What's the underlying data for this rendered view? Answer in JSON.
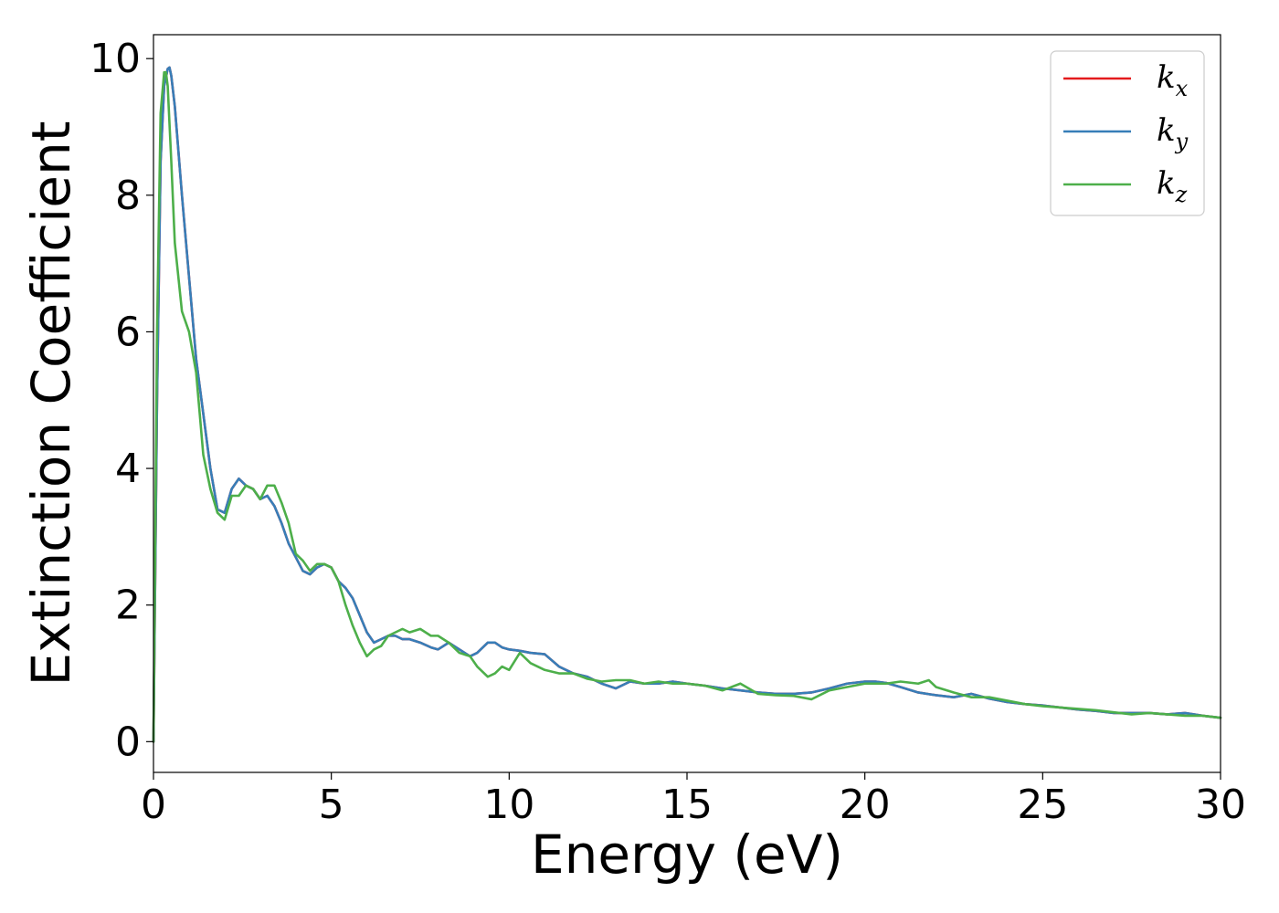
{
  "chart_data": {
    "type": "line",
    "xlabel": "Energy (eV)",
    "ylabel": "Extinction Coefficient",
    "xlim": [
      0,
      30
    ],
    "ylim": [
      -0.45,
      10.35
    ],
    "xticks": [
      0,
      5,
      10,
      15,
      20,
      25,
      30
    ],
    "yticks": [
      0,
      2,
      4,
      6,
      8,
      10
    ],
    "grid": false,
    "legend_position": "top-right",
    "series": [
      {
        "name": "k_x",
        "label_main": "k",
        "label_sub": "x",
        "color": "#e41a1c",
        "x": [
          0,
          0.1,
          0.2,
          0.3,
          0.4,
          0.45,
          0.5,
          0.6,
          0.8,
          1.0,
          1.2,
          1.4,
          1.6,
          1.8,
          2.0,
          2.2,
          2.4,
          2.6,
          2.8,
          3.0,
          3.2,
          3.4,
          3.6,
          3.8,
          4.0,
          4.2,
          4.4,
          4.6,
          4.8,
          5.0,
          5.2,
          5.4,
          5.6,
          5.8,
          6.0,
          6.2,
          6.4,
          6.6,
          6.8,
          7.0,
          7.2,
          7.5,
          7.8,
          8.0,
          8.3,
          8.6,
          8.9,
          9.1,
          9.4,
          9.6,
          9.8,
          10.0,
          10.3,
          10.6,
          11.0,
          11.4,
          11.8,
          12.2,
          12.6,
          13.0,
          13.4,
          13.8,
          14.2,
          14.6,
          15.0,
          15.5,
          16.0,
          16.5,
          17.0,
          17.5,
          18.0,
          18.5,
          19.0,
          19.5,
          20.0,
          20.3,
          20.6,
          21.0,
          21.5,
          22.0,
          22.5,
          23.0,
          23.5,
          24.0,
          24.5,
          25.0,
          25.5,
          26.0,
          26.5,
          27.0,
          27.5,
          28.0,
          28.5,
          29.0,
          29.5,
          30.0
        ],
        "y": [
          0.0,
          5.0,
          8.5,
          9.6,
          9.85,
          9.87,
          9.75,
          9.3,
          8.0,
          6.8,
          5.6,
          4.8,
          4.0,
          3.4,
          3.35,
          3.7,
          3.85,
          3.75,
          3.7,
          3.55,
          3.6,
          3.45,
          3.2,
          2.9,
          2.7,
          2.5,
          2.45,
          2.55,
          2.6,
          2.55,
          2.35,
          2.25,
          2.1,
          1.85,
          1.6,
          1.45,
          1.5,
          1.55,
          1.55,
          1.5,
          1.5,
          1.45,
          1.38,
          1.35,
          1.45,
          1.35,
          1.25,
          1.3,
          1.45,
          1.45,
          1.38,
          1.35,
          1.33,
          1.3,
          1.28,
          1.1,
          1.0,
          0.95,
          0.85,
          0.78,
          0.88,
          0.85,
          0.85,
          0.88,
          0.85,
          0.82,
          0.78,
          0.75,
          0.72,
          0.7,
          0.7,
          0.72,
          0.78,
          0.85,
          0.88,
          0.88,
          0.86,
          0.8,
          0.72,
          0.68,
          0.65,
          0.7,
          0.63,
          0.58,
          0.55,
          0.53,
          0.5,
          0.47,
          0.45,
          0.42,
          0.42,
          0.42,
          0.4,
          0.42,
          0.38,
          0.35
        ]
      },
      {
        "name": "k_y",
        "label_main": "k",
        "label_sub": "y",
        "color": "#377eb8",
        "x": [
          0,
          0.1,
          0.2,
          0.3,
          0.4,
          0.45,
          0.5,
          0.6,
          0.8,
          1.0,
          1.2,
          1.4,
          1.6,
          1.8,
          2.0,
          2.2,
          2.4,
          2.6,
          2.8,
          3.0,
          3.2,
          3.4,
          3.6,
          3.8,
          4.0,
          4.2,
          4.4,
          4.6,
          4.8,
          5.0,
          5.2,
          5.4,
          5.6,
          5.8,
          6.0,
          6.2,
          6.4,
          6.6,
          6.8,
          7.0,
          7.2,
          7.5,
          7.8,
          8.0,
          8.3,
          8.6,
          8.9,
          9.1,
          9.4,
          9.6,
          9.8,
          10.0,
          10.3,
          10.6,
          11.0,
          11.4,
          11.8,
          12.2,
          12.6,
          13.0,
          13.4,
          13.8,
          14.2,
          14.6,
          15.0,
          15.5,
          16.0,
          16.5,
          17.0,
          17.5,
          18.0,
          18.5,
          19.0,
          19.5,
          20.0,
          20.3,
          20.6,
          21.0,
          21.5,
          22.0,
          22.5,
          23.0,
          23.5,
          24.0,
          24.5,
          25.0,
          25.5,
          26.0,
          26.5,
          27.0,
          27.5,
          28.0,
          28.5,
          29.0,
          29.5,
          30.0
        ],
        "y": [
          0.0,
          5.0,
          8.5,
          9.6,
          9.85,
          9.87,
          9.75,
          9.3,
          8.0,
          6.8,
          5.6,
          4.8,
          4.0,
          3.4,
          3.35,
          3.7,
          3.85,
          3.75,
          3.7,
          3.55,
          3.6,
          3.45,
          3.2,
          2.9,
          2.7,
          2.5,
          2.45,
          2.55,
          2.6,
          2.55,
          2.35,
          2.25,
          2.1,
          1.85,
          1.6,
          1.45,
          1.5,
          1.55,
          1.55,
          1.5,
          1.5,
          1.45,
          1.38,
          1.35,
          1.45,
          1.35,
          1.25,
          1.3,
          1.45,
          1.45,
          1.38,
          1.35,
          1.33,
          1.3,
          1.28,
          1.1,
          1.0,
          0.95,
          0.85,
          0.78,
          0.88,
          0.85,
          0.85,
          0.88,
          0.85,
          0.82,
          0.78,
          0.75,
          0.72,
          0.7,
          0.7,
          0.72,
          0.78,
          0.85,
          0.88,
          0.88,
          0.86,
          0.8,
          0.72,
          0.68,
          0.65,
          0.7,
          0.63,
          0.58,
          0.55,
          0.53,
          0.5,
          0.47,
          0.45,
          0.42,
          0.42,
          0.42,
          0.4,
          0.42,
          0.38,
          0.35
        ]
      },
      {
        "name": "k_z",
        "label_main": "k",
        "label_sub": "z",
        "color": "#4daf4a",
        "x": [
          0,
          0.1,
          0.2,
          0.3,
          0.35,
          0.4,
          0.5,
          0.6,
          0.8,
          1.0,
          1.2,
          1.4,
          1.6,
          1.8,
          2.0,
          2.2,
          2.4,
          2.6,
          2.8,
          3.0,
          3.2,
          3.4,
          3.6,
          3.8,
          4.0,
          4.2,
          4.4,
          4.6,
          4.8,
          5.0,
          5.2,
          5.4,
          5.6,
          5.8,
          6.0,
          6.2,
          6.4,
          6.6,
          6.8,
          7.0,
          7.2,
          7.5,
          7.8,
          8.0,
          8.3,
          8.6,
          8.9,
          9.1,
          9.4,
          9.6,
          9.8,
          10.0,
          10.3,
          10.6,
          11.0,
          11.4,
          11.8,
          12.2,
          12.6,
          13.0,
          13.4,
          13.8,
          14.2,
          14.6,
          15.0,
          15.5,
          16.0,
          16.5,
          17.0,
          17.5,
          18.0,
          18.5,
          19.0,
          19.5,
          20.0,
          20.3,
          20.6,
          21.0,
          21.5,
          21.8,
          22.0,
          22.5,
          23.0,
          23.5,
          24.0,
          24.5,
          25.0,
          25.5,
          26.0,
          26.5,
          27.0,
          27.5,
          28.0,
          28.5,
          29.0,
          29.5,
          30.0
        ],
        "y": [
          0.0,
          6.0,
          9.2,
          9.8,
          9.8,
          9.6,
          8.5,
          7.3,
          6.3,
          6.0,
          5.4,
          4.2,
          3.7,
          3.35,
          3.25,
          3.6,
          3.6,
          3.75,
          3.7,
          3.55,
          3.75,
          3.75,
          3.5,
          3.2,
          2.75,
          2.65,
          2.5,
          2.6,
          2.6,
          2.55,
          2.35,
          2.0,
          1.7,
          1.45,
          1.25,
          1.35,
          1.4,
          1.55,
          1.6,
          1.65,
          1.6,
          1.65,
          1.55,
          1.55,
          1.45,
          1.3,
          1.25,
          1.1,
          0.95,
          1.0,
          1.1,
          1.05,
          1.3,
          1.15,
          1.05,
          1.0,
          1.0,
          0.92,
          0.88,
          0.9,
          0.9,
          0.85,
          0.88,
          0.85,
          0.85,
          0.82,
          0.75,
          0.85,
          0.7,
          0.68,
          0.67,
          0.62,
          0.75,
          0.8,
          0.85,
          0.85,
          0.85,
          0.88,
          0.85,
          0.9,
          0.8,
          0.72,
          0.65,
          0.65,
          0.6,
          0.55,
          0.52,
          0.5,
          0.48,
          0.46,
          0.43,
          0.4,
          0.42,
          0.4,
          0.38,
          0.38,
          0.35
        ]
      }
    ]
  }
}
